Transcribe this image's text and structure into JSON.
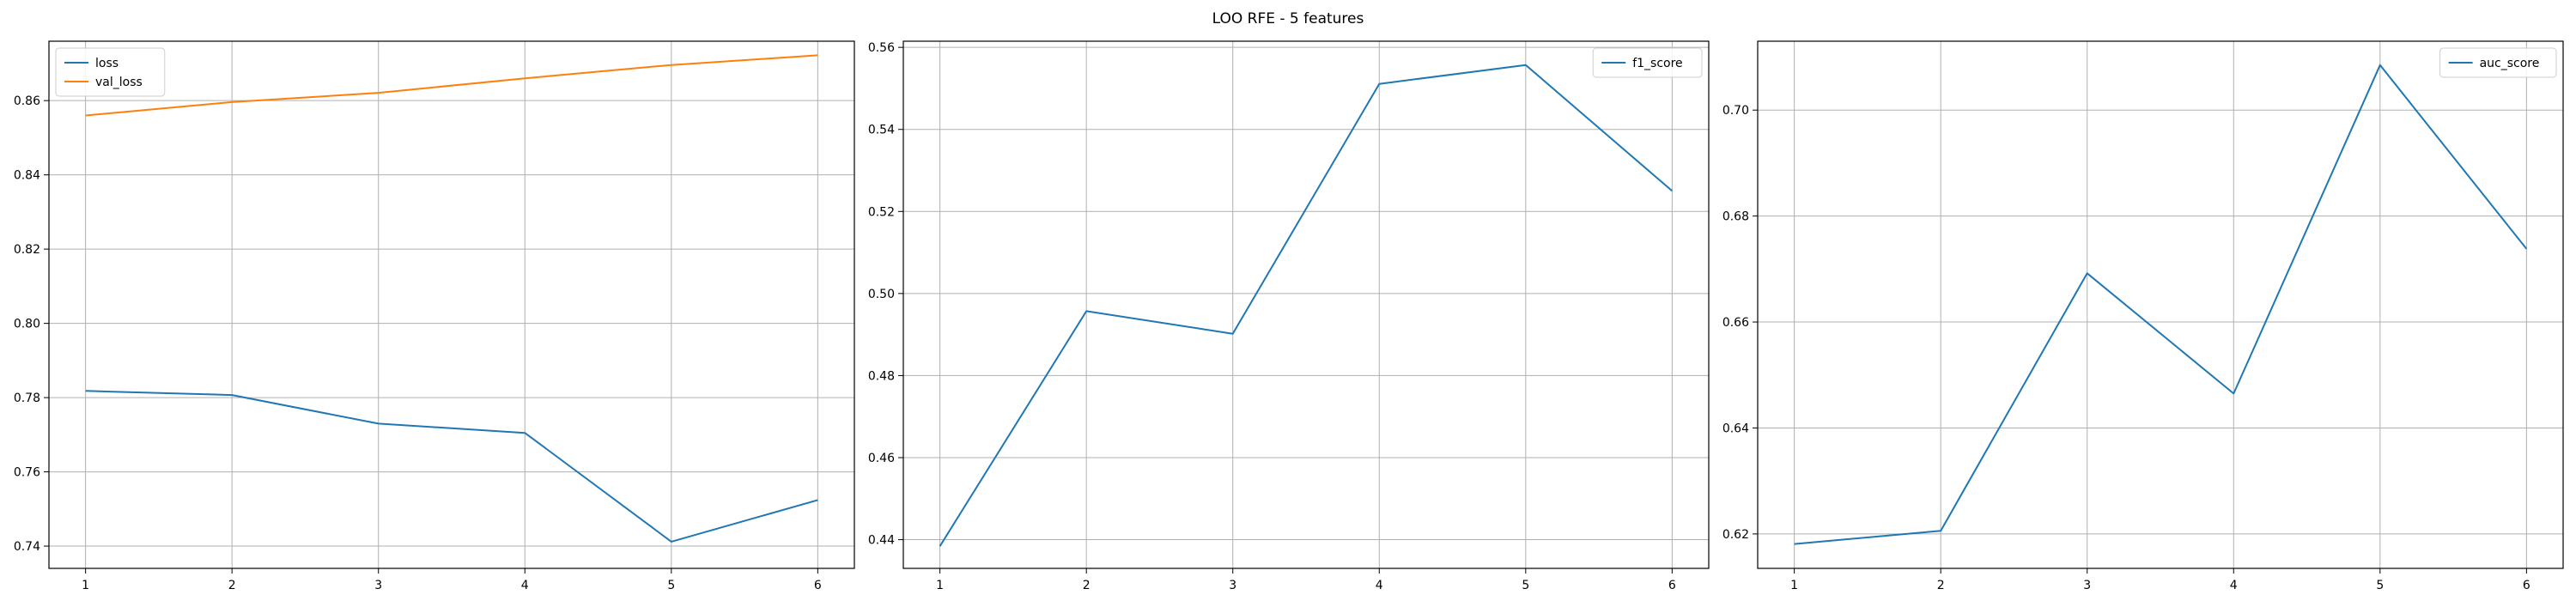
{
  "figure": {
    "title": "LOO RFE - 5 features"
  },
  "chart_data": [
    {
      "type": "line",
      "x": [
        1,
        2,
        3,
        4,
        5,
        6
      ],
      "series": [
        {
          "name": "loss",
          "color": "#1f77b4",
          "values": [
            0.7818,
            0.7807,
            0.773,
            0.7705,
            0.7412,
            0.7524
          ]
        },
        {
          "name": "val_loss",
          "color": "#ff7f0e",
          "values": [
            0.856,
            0.8596,
            0.8621,
            0.866,
            0.8696,
            0.8722
          ]
        }
      ],
      "xticks": [
        1,
        2,
        3,
        4,
        5,
        6
      ],
      "yticks": [
        0.74,
        0.76,
        0.78,
        0.8,
        0.82,
        0.84,
        0.86
      ],
      "ylim": [
        0.734,
        0.876
      ],
      "xlim": [
        0.75,
        6.25
      ],
      "grid": true,
      "legend": "top-left"
    },
    {
      "type": "line",
      "x": [
        1,
        2,
        3,
        4,
        5,
        6
      ],
      "series": [
        {
          "name": "f1_score",
          "color": "#1f77b4",
          "values": [
            0.4384,
            0.4957,
            0.4902,
            0.5511,
            0.5557,
            0.525
          ]
        }
      ],
      "xticks": [
        1,
        2,
        3,
        4,
        5,
        6
      ],
      "yticks": [
        0.44,
        0.46,
        0.48,
        0.5,
        0.52,
        0.54,
        0.56
      ],
      "ylim": [
        0.433,
        0.5615
      ],
      "xlim": [
        0.75,
        6.25
      ],
      "grid": true,
      "legend": "top-right"
    },
    {
      "type": "line",
      "x": [
        1,
        2,
        3,
        4,
        5,
        6
      ],
      "series": [
        {
          "name": "auc_score",
          "color": "#1f77b4",
          "values": [
            0.6181,
            0.6206,
            0.6692,
            0.6465,
            0.7085,
            0.6738
          ]
        }
      ],
      "xticks": [
        1,
        2,
        3,
        4,
        5,
        6
      ],
      "yticks": [
        0.62,
        0.64,
        0.66,
        0.68,
        0.7
      ],
      "ylim": [
        0.6135,
        0.713
      ],
      "xlim": [
        0.75,
        6.25
      ],
      "grid": true,
      "legend": "top-right"
    }
  ]
}
